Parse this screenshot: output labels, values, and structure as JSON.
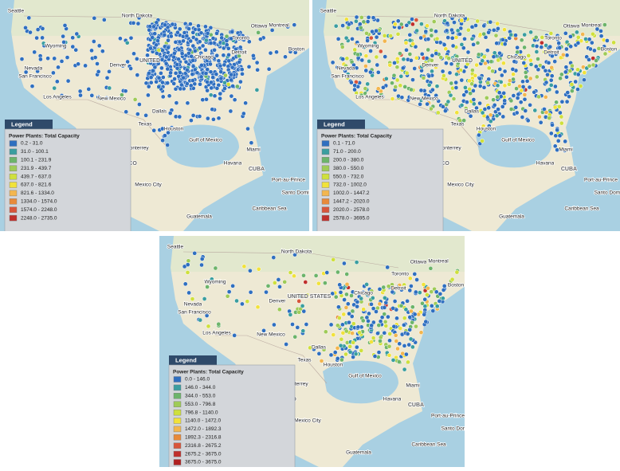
{
  "maps": [
    {
      "labels": [
        "Seattle",
        "North Dakota",
        "Wyoming",
        "Nevada",
        "San Francisco",
        "Denver",
        "UNITED",
        "Chicago",
        "Detroit",
        "Toronto",
        "Ottawa",
        "Montreal",
        "Boston",
        "Los Angeles",
        "New Mexico",
        "Dallas",
        "Texas",
        "Houston",
        "Monterrey",
        "Gulf of Mexico",
        "Miami",
        "MEXICO",
        "Havana",
        "CUBA",
        "Guadalajara",
        "Mexico City",
        "Port-au-Prince",
        "Santo Domingo",
        "Caribbean Sea",
        "Guatemala"
      ],
      "legend": {
        "header": "Legend",
        "title": "Power Plants: Total Capacity",
        "classes": [
          "0.2 - 31.0",
          "31.0 - 100.1",
          "100.1 - 231.9",
          "231.9 - 439.7",
          "439.7 - 637.0",
          "637.0 - 821.6",
          "821.6 - 1334.0",
          "1334.0 - 1574.0",
          "1574.0 - 2248.0",
          "2248.0 - 2735.0"
        ],
        "colors": [
          "#2f6fc0",
          "#3a9ea0",
          "#6cb46a",
          "#9fcb57",
          "#cfe03c",
          "#f1e23a",
          "#f3b64e",
          "#e88a3a",
          "#d8553a",
          "#c0302c"
        ]
      }
    },
    {
      "labels": [
        "Seattle",
        "North Dakota",
        "Wyoming",
        "Nevada",
        "San Francisco",
        "Denver",
        "UNITED",
        "Chicago",
        "Detroit",
        "Toronto",
        "Ottawa",
        "Montreal",
        "Boston",
        "Los Angeles",
        "New Mexico",
        "Dallas",
        "Texas",
        "Houston",
        "Monterrey",
        "Gulf of Mexico",
        "Miami",
        "MEXICO",
        "Havana",
        "CUBA",
        "Guadalajara",
        "Mexico City",
        "Port-au-Prince",
        "Santo Domingo",
        "Caribbean Sea",
        "Guatemala"
      ],
      "legend": {
        "header": "Legend",
        "title": "Power Plants: Total Capacity",
        "classes": [
          "0.1 - 71.0",
          "71.0 - 200.0",
          "200.0 - 380.0",
          "380.0 - 550.0",
          "550.0 - 732.0",
          "732.0 - 1002.0",
          "1002.0 - 1447.2",
          "1447.2 - 2020.0",
          "2020.0 - 2578.0",
          "2578.0 - 3695.0"
        ],
        "colors": [
          "#2f6fc0",
          "#3a9ea0",
          "#6cb46a",
          "#9fcb57",
          "#cfe03c",
          "#f1e23a",
          "#f3b64e",
          "#e88a3a",
          "#d8553a",
          "#c0302c"
        ]
      }
    },
    {
      "labels": [
        "Seattle",
        "North Dakota",
        "Wyoming",
        "Nevada",
        "San Francisco",
        "Denver",
        "UNITED STATES",
        "Chicago",
        "Detroit",
        "Toronto",
        "Ottawa",
        "Montreal",
        "Boston",
        "Los Angeles",
        "New Mexico",
        "Dallas",
        "Texas",
        "Houston",
        "Monterrey",
        "Gulf of Mexico",
        "Miami",
        "MEXICO",
        "Havana",
        "CUBA",
        "Guadalajara",
        "Mexico City",
        "Port-au-Prince",
        "Santo Domingo",
        "Caribbean Sea",
        "Guatemala"
      ],
      "legend": {
        "header": "Legend",
        "title": "Power Plants: Total Capacity",
        "classes": [
          "0.0 - 146.0",
          "146.0 - 344.0",
          "344.0 - 553.0",
          "553.0 - 796.8",
          "796.8 - 1140.0",
          "1140.0 - 1472.0",
          "1472.0 - 1892.3",
          "1892.3 - 2316.8",
          "2316.8 - 2675.2",
          "2675.2 - 3675.0",
          "3675.0 - 3675.0"
        ],
        "colors": [
          "#2f6fc0",
          "#3a9ea0",
          "#6cb46a",
          "#9fcb57",
          "#cfe03c",
          "#f1e23a",
          "#f3b64e",
          "#e88a3a",
          "#d8553a",
          "#c0302c",
          "#b02020"
        ]
      }
    }
  ]
}
